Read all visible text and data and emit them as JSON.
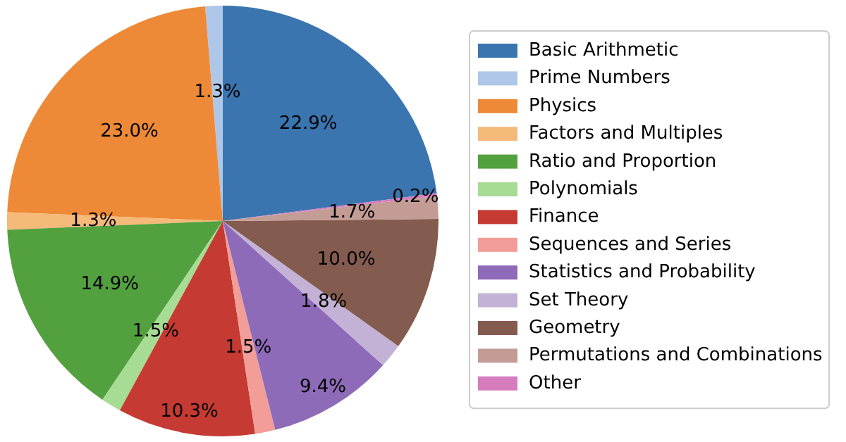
{
  "chart_data": {
    "type": "pie",
    "categories": [
      "Basic Arithmetic",
      "Prime Numbers",
      "Physics",
      "Factors and Multiples",
      "Ratio and Proportion",
      "Polynomials",
      "Finance",
      "Sequences and Series",
      "Statistics and Probability",
      "Set Theory",
      "Geometry",
      "Permutations and Combinations",
      "Other"
    ],
    "values": [
      22.9,
      1.3,
      23.0,
      1.3,
      14.9,
      1.5,
      10.3,
      1.5,
      9.4,
      1.8,
      10.0,
      1.7,
      0.2
    ],
    "colors": [
      "#3a75af",
      "#aec7e8",
      "#ee8a37",
      "#f5b97a",
      "#53a03f",
      "#a6dc93",
      "#c53a32",
      "#f29d98",
      "#8e6bb8",
      "#c3b2d6",
      "#845b4f",
      "#c39c95",
      "#d67cbd"
    ],
    "value_labels": [
      "22.9%",
      "1.3%",
      "23.0%",
      "1.3%",
      "14.9%",
      "1.5%",
      "10.3%",
      "1.5%",
      "9.4%",
      "1.8%",
      "10.0%",
      "1.7%",
      "0.2%"
    ],
    "legend": "right"
  }
}
